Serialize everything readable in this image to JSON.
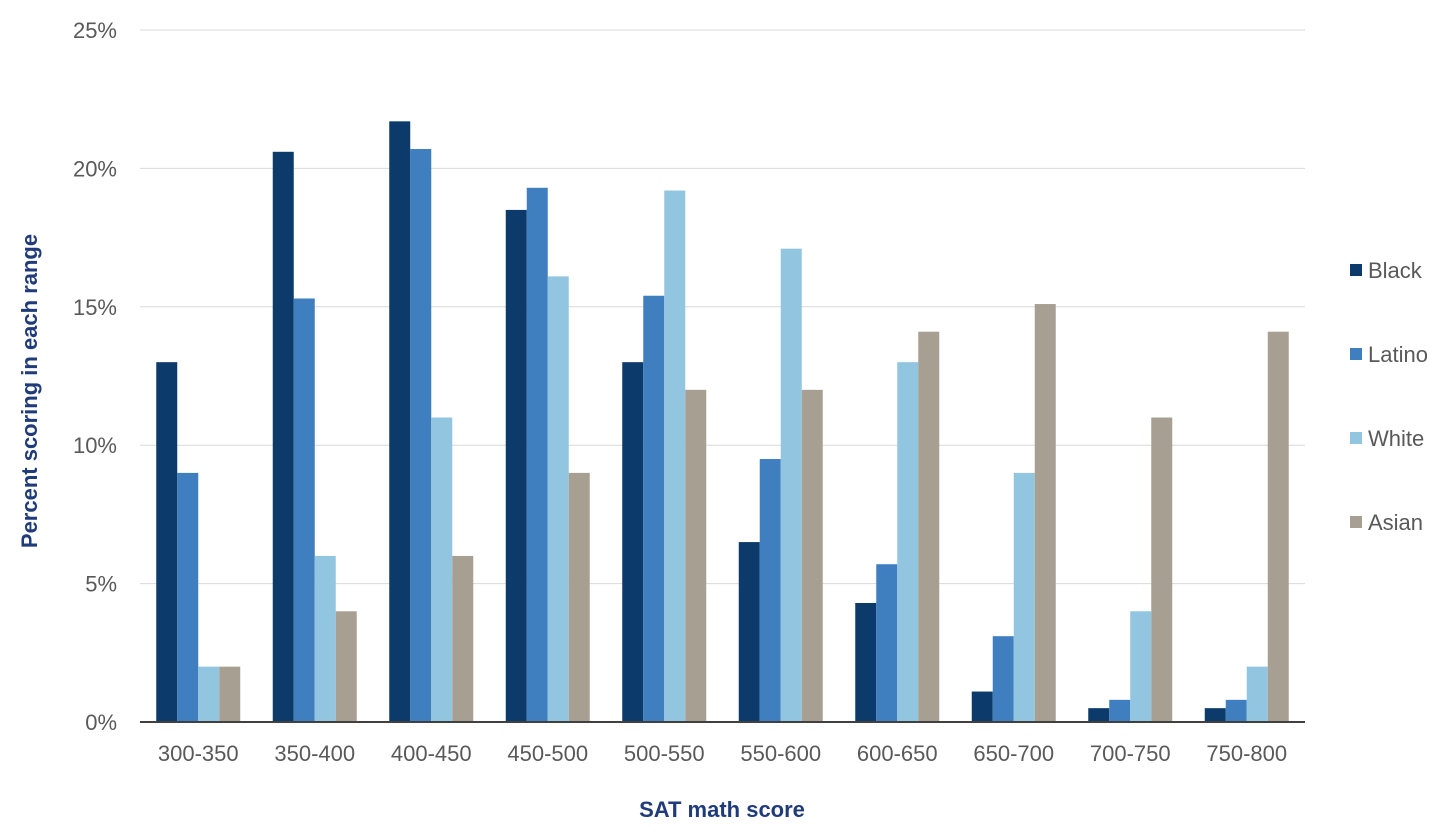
{
  "chart_data": {
    "type": "bar",
    "title": "",
    "xlabel": "SAT math score",
    "ylabel": "Percent scoring in each range",
    "ylim": [
      0,
      25
    ],
    "yticks": [
      0,
      5,
      10,
      15,
      20,
      25
    ],
    "ytick_labels": [
      "0%",
      "5%",
      "10%",
      "15%",
      "20%",
      "25%"
    ],
    "grid": true,
    "legend_position": "right",
    "categories": [
      "300-350",
      "350-400",
      "400-450",
      "450-500",
      "500-550",
      "550-600",
      "600-650",
      "650-700",
      "700-750",
      "750-800"
    ],
    "series": [
      {
        "name": "Black",
        "color": "#0b3a6b",
        "values": [
          13,
          20.6,
          21.7,
          18.5,
          13,
          6.5,
          4.3,
          1.1,
          0.5,
          0.5
        ]
      },
      {
        "name": "Latino",
        "color": "#3f7ebf",
        "values": [
          9,
          15.3,
          20.7,
          19.3,
          15.4,
          9.5,
          5.7,
          3.1,
          0.8,
          0.8
        ]
      },
      {
        "name": "White",
        "color": "#92c5df",
        "values": [
          2,
          6,
          11,
          16.1,
          19.2,
          17.1,
          13,
          9,
          4,
          2
        ]
      },
      {
        "name": "Asian",
        "color": "#a89f93",
        "values": [
          2,
          4,
          6,
          9,
          12,
          12,
          14.1,
          15.1,
          11,
          14.1
        ]
      }
    ]
  }
}
